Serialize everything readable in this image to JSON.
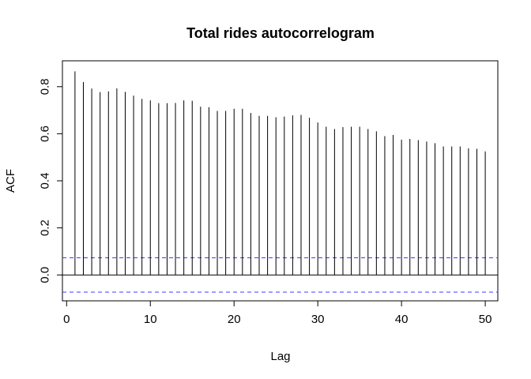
{
  "chart_data": {
    "type": "bar",
    "title": "Total rides autocorrelogram",
    "xlabel": "Lag",
    "ylabel": "ACF",
    "xlim": [
      -0.5,
      51.5
    ],
    "ylim": [
      -0.11,
      0.91
    ],
    "x_ticks": [
      0,
      10,
      20,
      30,
      40,
      50
    ],
    "x_tick_labels": [
      "0",
      "10",
      "20",
      "30",
      "40",
      "50"
    ],
    "y_ticks": [
      0.0,
      0.2,
      0.4,
      0.6,
      0.8
    ],
    "y_tick_labels": [
      "0.0",
      "0.2",
      "0.4",
      "0.6",
      "0.8"
    ],
    "confidence_bound": 0.073,
    "grid": false,
    "series": [
      {
        "x": [
          1,
          2,
          3,
          4,
          5,
          6,
          7,
          8,
          9,
          10,
          11,
          12,
          13,
          14,
          15,
          16,
          17,
          18,
          19,
          20,
          21,
          22,
          23,
          24,
          25,
          26,
          27,
          28,
          29,
          30,
          31,
          32,
          33,
          34,
          35,
          36,
          37,
          38,
          39,
          40,
          41,
          42,
          43,
          44,
          45,
          46,
          47,
          48,
          49,
          50
        ],
        "values": [
          0.865,
          0.82,
          0.792,
          0.777,
          0.78,
          0.793,
          0.778,
          0.762,
          0.748,
          0.742,
          0.73,
          0.73,
          0.731,
          0.742,
          0.74,
          0.715,
          0.713,
          0.697,
          0.697,
          0.706,
          0.706,
          0.688,
          0.676,
          0.676,
          0.67,
          0.673,
          0.678,
          0.68,
          0.668,
          0.648,
          0.63,
          0.62,
          0.628,
          0.63,
          0.63,
          0.62,
          0.61,
          0.59,
          0.595,
          0.575,
          0.578,
          0.573,
          0.567,
          0.56,
          0.546,
          0.546,
          0.546,
          0.538,
          0.536,
          0.525
        ]
      }
    ]
  },
  "colors": {
    "spike": "#000000",
    "bound": "#3b3bff",
    "zero_line": "#000000"
  }
}
